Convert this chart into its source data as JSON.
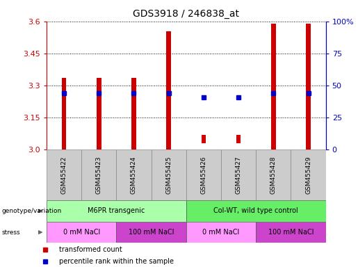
{
  "title": "GDS3918 / 246838_at",
  "samples": [
    "GSM455422",
    "GSM455423",
    "GSM455424",
    "GSM455425",
    "GSM455426",
    "GSM455427",
    "GSM455428",
    "GSM455429"
  ],
  "bar_bottoms": [
    3.0,
    3.0,
    3.0,
    3.0,
    3.03,
    3.03,
    3.0,
    3.0
  ],
  "bar_tops": [
    3.335,
    3.335,
    3.335,
    3.555,
    3.07,
    3.07,
    3.59,
    3.59
  ],
  "percentile_values": [
    3.265,
    3.265,
    3.265,
    3.265,
    3.245,
    3.245,
    3.265,
    3.265
  ],
  "ylim": [
    3.0,
    3.6
  ],
  "yticks_left": [
    3.0,
    3.15,
    3.3,
    3.45,
    3.6
  ],
  "yticks_right": [
    0,
    25,
    50,
    75,
    100
  ],
  "ytick_labels_right": [
    "0",
    "25",
    "50",
    "75",
    "100%"
  ],
  "bar_color": "#cc0000",
  "percentile_color": "#0000cc",
  "axis_color_left": "#cc0000",
  "axis_color_right": "#0000cc",
  "bar_width": 0.13,
  "genotype_groups": [
    {
      "label": "M6PR transgenic",
      "start": 0,
      "end": 4,
      "color": "#aaffaa"
    },
    {
      "label": "Col-WT, wild type control",
      "start": 4,
      "end": 8,
      "color": "#66ee66"
    }
  ],
  "stress_groups": [
    {
      "label": "0 mM NaCl",
      "start": 0,
      "end": 2,
      "color": "#ff99ff"
    },
    {
      "label": "100 mM NaCl",
      "start": 2,
      "end": 4,
      "color": "#cc44cc"
    },
    {
      "label": "0 mM NaCl",
      "start": 4,
      "end": 6,
      "color": "#ff99ff"
    },
    {
      "label": "100 mM NaCl",
      "start": 6,
      "end": 8,
      "color": "#cc44cc"
    }
  ],
  "legend_items": [
    {
      "label": "transformed count",
      "color": "#cc0000"
    },
    {
      "label": "percentile rank within the sample",
      "color": "#0000cc"
    }
  ],
  "background_color": "#ffffff",
  "xtick_box_color": "#cccccc",
  "xtick_box_edge": "#888888"
}
